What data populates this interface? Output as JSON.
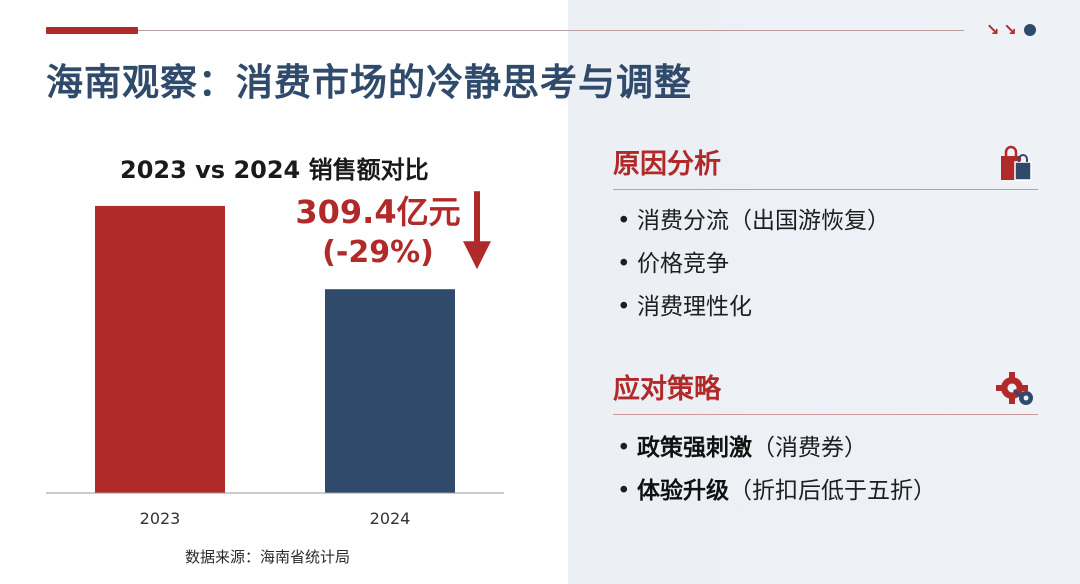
{
  "header": {
    "title": "海南观察：消费市场的冷静思考与调整",
    "accent_color": "#b02a2a",
    "title_color": "#2f4a6b"
  },
  "chart_data": {
    "type": "bar",
    "title": "2023 vs 2024 销售额对比",
    "categories": [
      "2023",
      "2024"
    ],
    "values": [
      435.8,
      309.4
    ],
    "colors": [
      "#b02a2a",
      "#2f4a6b"
    ],
    "ylim": [
      0,
      460
    ],
    "annotation": {
      "category": "2024",
      "value_text": "309.4亿元",
      "change_text": "(-29%)",
      "direction": "down"
    },
    "xlabel": "",
    "ylabel": "",
    "grid": false
  },
  "source": "数据来源：海南省统计局",
  "reasons": {
    "heading": "原因分析",
    "icon": "shopping-bags-icon",
    "items": [
      {
        "text": "消费分流（出国游恢复）"
      },
      {
        "text": "价格竞争"
      },
      {
        "text": "消费理性化"
      }
    ]
  },
  "strategies": {
    "heading": "应对策略",
    "icon": "gear-wrench-icon",
    "items": [
      {
        "bold": "政策强刺激",
        "rest": "（消费券）"
      },
      {
        "bold": "体验升级",
        "rest": "（折扣后低于五折）"
      }
    ]
  }
}
